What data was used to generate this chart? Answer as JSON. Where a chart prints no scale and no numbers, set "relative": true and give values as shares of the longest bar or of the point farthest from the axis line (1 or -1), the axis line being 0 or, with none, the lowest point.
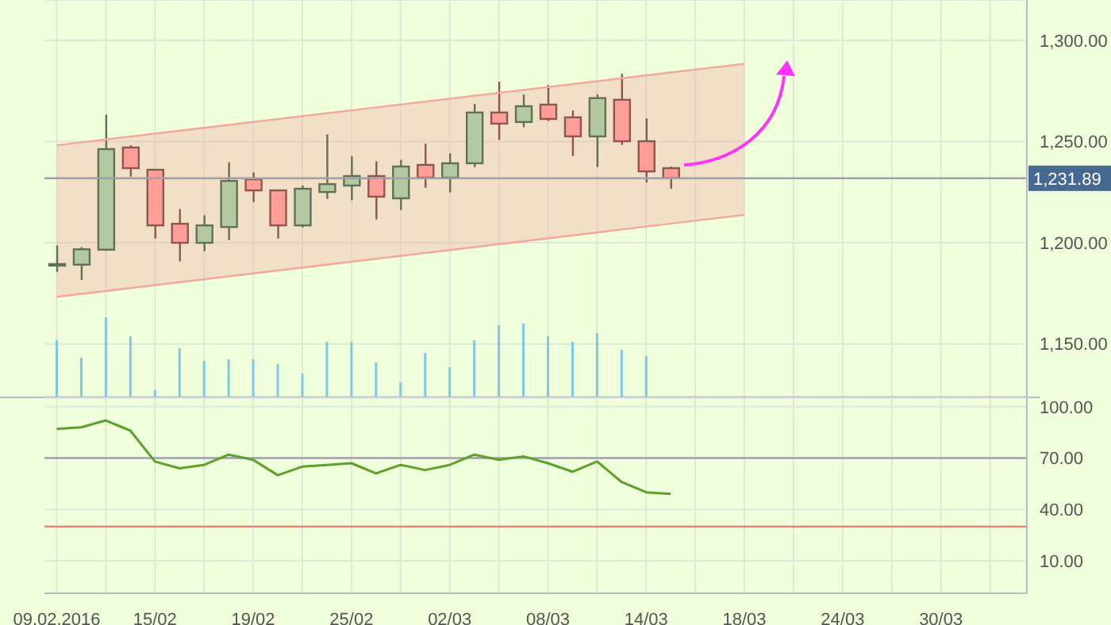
{
  "chart_data": [
    {
      "type": "candlestick",
      "categories": [
        "09.02.2016",
        null,
        null,
        null,
        "15/02",
        null,
        null,
        null,
        "19/02",
        null,
        null,
        null,
        "25/02",
        null,
        null,
        null,
        "02/03",
        null,
        null,
        null,
        "08/03",
        null,
        null,
        null,
        "14/03",
        null,
        null,
        null,
        "18/03",
        null,
        null,
        null,
        "24/03",
        null,
        null,
        null,
        "30/03",
        null,
        null,
        null
      ],
      "ohlc": [
        [
          1189,
          1198.7,
          1185.6,
          1189.5
        ],
        [
          1189.2,
          1197.9,
          1181.6,
          1196.8
        ],
        [
          1196.6,
          1263.3,
          1196,
          1246.3
        ],
        [
          1247.1,
          1248.2,
          1232.7,
          1236.9
        ],
        [
          1236.1,
          1236.1,
          1202.1,
          1208.6
        ],
        [
          1209.4,
          1216.7,
          1190.8,
          1200
        ],
        [
          1200,
          1213.6,
          1195.8,
          1208.6
        ],
        [
          1207.8,
          1239.8,
          1201.3,
          1230.6
        ],
        [
          1231.4,
          1234.8,
          1220.1,
          1225.9
        ],
        [
          1225.9,
          1225.9,
          1202.1,
          1208.6
        ],
        [
          1208.6,
          1228.3,
          1207.6,
          1226.7
        ],
        [
          1225.1,
          1253.6,
          1221.7,
          1229
        ],
        [
          1228.3,
          1242.7,
          1221,
          1233
        ],
        [
          1233,
          1240.3,
          1211.5,
          1222.8
        ],
        [
          1222,
          1241,
          1216.2,
          1237.7
        ],
        [
          1238.5,
          1249,
          1227.2,
          1232.2
        ],
        [
          1232.2,
          1244.2,
          1224.9,
          1239.3
        ],
        [
          1239.3,
          1268.6,
          1237.4,
          1264.4
        ],
        [
          1264.4,
          1279.6,
          1250.8,
          1258.9
        ],
        [
          1259.7,
          1273.3,
          1257.1,
          1267.5
        ],
        [
          1268.3,
          1278,
          1260.2,
          1261.2
        ],
        [
          1262,
          1265.4,
          1242.9,
          1252.6
        ],
        [
          1252.6,
          1273.3,
          1237.4,
          1271.5
        ],
        [
          1270.7,
          1283.5,
          1248.4,
          1250.2
        ],
        [
          1250.2,
          1261.5,
          1229.8,
          1235.3
        ],
        [
          1236.9,
          1237.7,
          1226.7,
          1231.89
        ],
        null,
        null,
        null,
        null,
        null,
        null,
        null,
        null,
        null,
        null,
        null,
        null,
        null,
        null
      ],
      "colors": [
        "#b3c9a2",
        "#b3c9a2",
        "#b3c9a2",
        "#ff9e96",
        "#ff9e96",
        "#ff9e96",
        "#b3c9a2",
        "#b3c9a2",
        "#ff9e96",
        "#ff9e96",
        "#b3c9a2",
        "#b3c9a2",
        "#b3c9a2",
        "#ff9e96",
        "#b3c9a2",
        "#ff9e96",
        "#b3c9a2",
        "#b3c9a2",
        "#ff9e96",
        "#b3c9a2",
        "#ff9e96",
        "#ff9e96",
        "#b3c9a2",
        "#ff9e96",
        "#ff9e96",
        "#ff9e96",
        null,
        null,
        null,
        null,
        null,
        null,
        null,
        null,
        null,
        null,
        null,
        null,
        null,
        null
      ],
      "series": [
        {
          "type": "line",
          "color": "#f5a5a0",
          "x": [
            "09.02.2016",
            "18/03"
          ],
          "values": [
            1173.3,
            1213.8
          ]
        },
        {
          "type": "area",
          "color": "#f5a5a0",
          "x": [
            "09.02.2016",
            "18/03"
          ],
          "values": [
            1248.2,
            1288.5
          ]
        }
      ],
      "ylim": [
        1124,
        1320
      ],
      "yticks": [
        {
          "value": 1150,
          "label": "1,150.00"
        },
        {
          "value": 1200,
          "label": "1,200.00"
        },
        {
          "value": 1250,
          "label": "1,250.00"
        },
        {
          "value": 1300,
          "label": "1,300.00"
        }
      ],
      "ref_lines": [
        {
          "axis": "y",
          "value": 1231.89,
          "label": "1,231.89",
          "color": "#a0a0a8"
        }
      ],
      "grid": true,
      "tick_labels": "y"
    },
    {
      "type": "bar",
      "relative": true,
      "color": "#7ec8e3",
      "tick_labels": false,
      "categories": [
        "09.02.2016",
        null,
        null,
        null,
        "15/02",
        null,
        null,
        null,
        "19/02",
        null,
        null,
        null,
        "25/02",
        null,
        null,
        null,
        "02/03",
        null,
        null,
        null,
        "08/03",
        null,
        null,
        null,
        "14/03",
        null,
        null,
        null,
        "18/03",
        null,
        null,
        null,
        "24/03",
        null,
        null,
        null,
        "30/03",
        null,
        null,
        null
      ],
      "values": [
        0.71,
        0.49,
        1,
        0.76,
        0.08,
        0.61,
        0.45,
        0.47,
        0.47,
        0.41,
        0.29,
        0.69,
        0.69,
        0.43,
        0.18,
        0.55,
        0.37,
        0.71,
        0.9,
        0.92,
        0.76,
        0.69,
        0.8,
        0.59,
        0.51,
        null,
        null,
        null,
        null,
        null,
        null,
        null,
        null,
        null,
        null,
        null,
        null,
        null,
        null,
        null
      ]
    },
    {
      "type": "line",
      "color": "#5fa02a",
      "categories": [
        "09.02.2016",
        null,
        null,
        null,
        "15/02",
        null,
        null,
        null,
        "19/02",
        null,
        null,
        null,
        "25/02",
        null,
        null,
        null,
        "02/03",
        null,
        null,
        null,
        "08/03",
        null,
        null,
        null,
        "14/03",
        null,
        null,
        null,
        "18/03",
        null,
        null,
        null,
        "24/03",
        null,
        null,
        null,
        "30/03",
        null,
        null,
        null
      ],
      "values": [
        87,
        88,
        92,
        86,
        68,
        64,
        66,
        72,
        69,
        60,
        65,
        66,
        67,
        61,
        66,
        63,
        66,
        72,
        69,
        71,
        67,
        62,
        68,
        56,
        50,
        49,
        null,
        null,
        null,
        null,
        null,
        null,
        null,
        null,
        null,
        null,
        null,
        null,
        null,
        null
      ],
      "ylim": [
        -9,
        105
      ],
      "yticks": [
        {
          "value": 10,
          "label": "10.00"
        },
        {
          "value": 40,
          "label": "40.00"
        },
        {
          "value": 70,
          "label": "70.00"
        },
        {
          "value": 100,
          "label": "100.00"
        }
      ],
      "ref_lines": [
        {
          "axis": "y",
          "value": 70,
          "color": "#a0a0a8"
        },
        {
          "axis": "y",
          "value": 30,
          "color": "#f08070"
        }
      ],
      "grid": true,
      "marker": "none"
    }
  ]
}
